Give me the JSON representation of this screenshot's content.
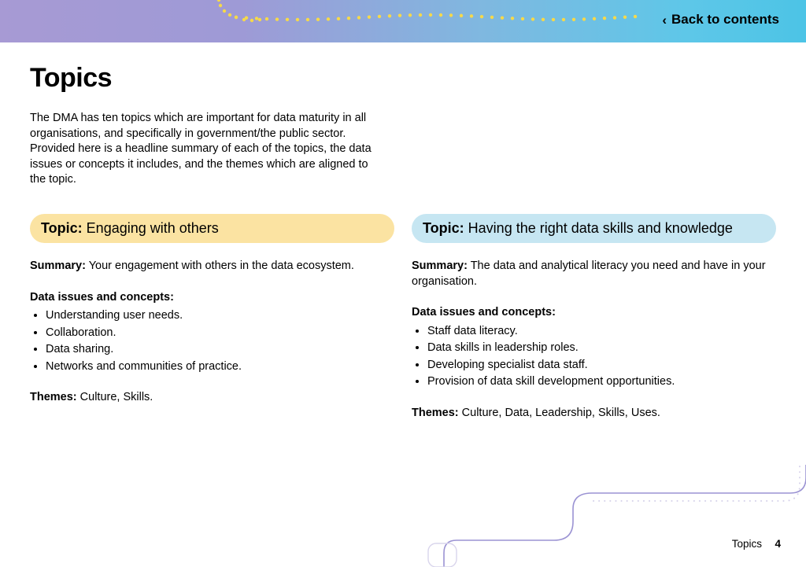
{
  "header": {
    "back_label": "Back to contents",
    "gradient_colors": [
      "#a79ad4",
      "#9e9ad6",
      "#7fb8e0",
      "#5ec7e8",
      "#4cc4e6"
    ],
    "dot_color": "#f6d94a",
    "dot_radius": 2.2,
    "band_height": 54
  },
  "page": {
    "title": "Topics",
    "intro": "The DMA has ten topics which are important for data maturity in all organisations, and specifically in government/the public sector. Provided here is a headline summary of each of the topics, the data issues or concepts it includes, and the themes which are aligned to the topic."
  },
  "topics": [
    {
      "pill_bg": "#fbe3a2",
      "label": "Topic:",
      "title": "Engaging with others",
      "summary_label": "Summary:",
      "summary": "Your engagement with others in the data ecosystem.",
      "issues_label": "Data issues and concepts:",
      "issues": [
        "Understanding user needs.",
        "Collaboration.",
        "Data sharing.",
        "Networks and communities of practice."
      ],
      "themes_label": "Themes:",
      "themes": "Culture, Skills."
    },
    {
      "pill_bg": "#c6e6f2",
      "label": "Topic:",
      "title": "Having the right data skills and knowledge",
      "summary_label": "Summary:",
      "summary": "The data and analytical literacy you need and have in your organisation.",
      "issues_label": "Data issues and concepts:",
      "issues": [
        "Staff data literacy.",
        "Data skills in leadership roles.",
        "Developing specialist data staff.",
        "Provision of data skill development opportunities."
      ],
      "themes_label": "Themes:",
      "themes": "Culture, Data, Leadership, Skills, Uses."
    }
  ],
  "footer": {
    "section": "Topics",
    "page_number": "4",
    "swirl_stroke": "#9b93d3",
    "swirl_dot_stroke": "#d6d2ea"
  }
}
